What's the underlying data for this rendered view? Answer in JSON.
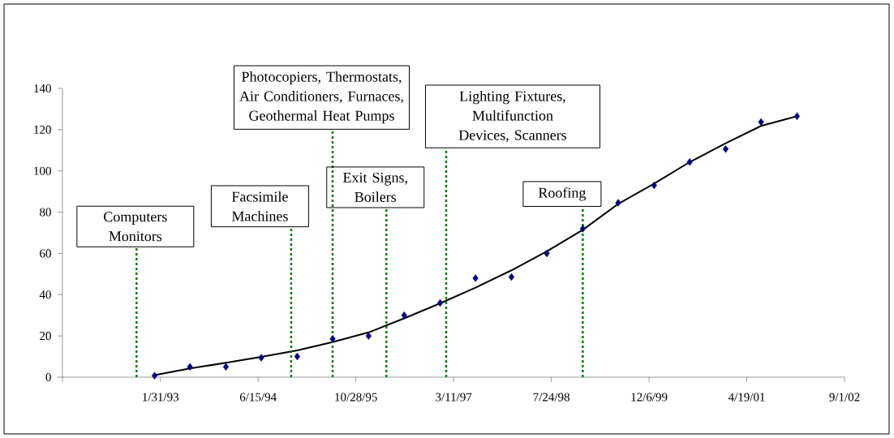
{
  "chart_data": {
    "type": "scatter",
    "x": [
      "1993-01-01",
      "1993-07-01",
      "1994-01-01",
      "1994-07-01",
      "1995-01-01",
      "1995-07-01",
      "1996-01-01",
      "1996-07-01",
      "1997-01-01",
      "1997-07-01",
      "1998-01-01",
      "1998-07-01",
      "1999-01-01",
      "1999-07-01",
      "2000-01-01",
      "2000-07-01",
      "2001-01-01",
      "2001-07-01",
      "2002-01-01"
    ],
    "series": [
      {
        "color": "#000080",
        "marker": "diamond",
        "values": [
          0.7,
          5,
          5,
          9.4,
          10,
          18.6,
          20,
          30,
          36,
          48,
          48.6,
          60,
          72,
          84.5,
          93,
          104.3,
          110.6,
          123.7,
          126.5
        ]
      },
      {
        "type": "line",
        "color": "#000000",
        "line_style": "solid",
        "values": [
          1,
          4.2,
          7,
          9.8,
          13,
          17,
          21.7,
          28.5,
          35.8,
          43.4,
          51.8,
          61,
          71.4,
          84,
          93.8,
          104.3,
          113.4,
          121.8,
          126.5
        ]
      }
    ],
    "xlim": [
      "1991-09-18",
      "2002-09-01"
    ],
    "xticks": [
      {
        "value": "1991-09-18",
        "label": null
      },
      {
        "value": "1993-01-31",
        "label": "1/31/93"
      },
      {
        "value": "1994-06-15",
        "label": "6/15/94"
      },
      {
        "value": "1995-10-28",
        "label": "10/28/95"
      },
      {
        "value": "1997-03-11",
        "label": "3/11/97"
      },
      {
        "value": "1998-07-24",
        "label": "7/24/98"
      },
      {
        "value": "1999-12-06",
        "label": "12/6/99"
      },
      {
        "value": "2001-04-19",
        "label": "4/19/01"
      },
      {
        "value": "2002-09-01",
        "label": "9/1/02"
      }
    ],
    "ylim": [
      0,
      140
    ],
    "yticks": [
      0,
      20,
      40,
      60,
      80,
      100,
      120,
      140
    ],
    "ref_lines": [
      {
        "axis": "x",
        "value": "1992-10-01",
        "label": "Computers Monitors",
        "color": "#008000",
        "line_style": "dashed"
      },
      {
        "axis": "x",
        "value": "1994-12-01",
        "label": "Facsimile Machines",
        "color": "#008000",
        "line_style": "dashed"
      },
      {
        "axis": "x",
        "value": "1995-07-01",
        "label": "Photocopiers, Thermostats, Air Conditioners, Furnaces, Geothermal Heat Pumps",
        "color": "#008000",
        "line_style": "dashed"
      },
      {
        "axis": "x",
        "value": "1996-04-01",
        "label": "Exit Signs, Boilers",
        "color": "#008000",
        "line_style": "dashed"
      },
      {
        "axis": "x",
        "value": "1997-02-01",
        "label": "Lighting Fixtures, Multifunction Devices, Scanners",
        "color": "#008000",
        "line_style": "dashed"
      },
      {
        "axis": "x",
        "value": "1999-01-01",
        "label": "Roofing",
        "color": "#008000",
        "line_style": "dashed"
      }
    ]
  }
}
